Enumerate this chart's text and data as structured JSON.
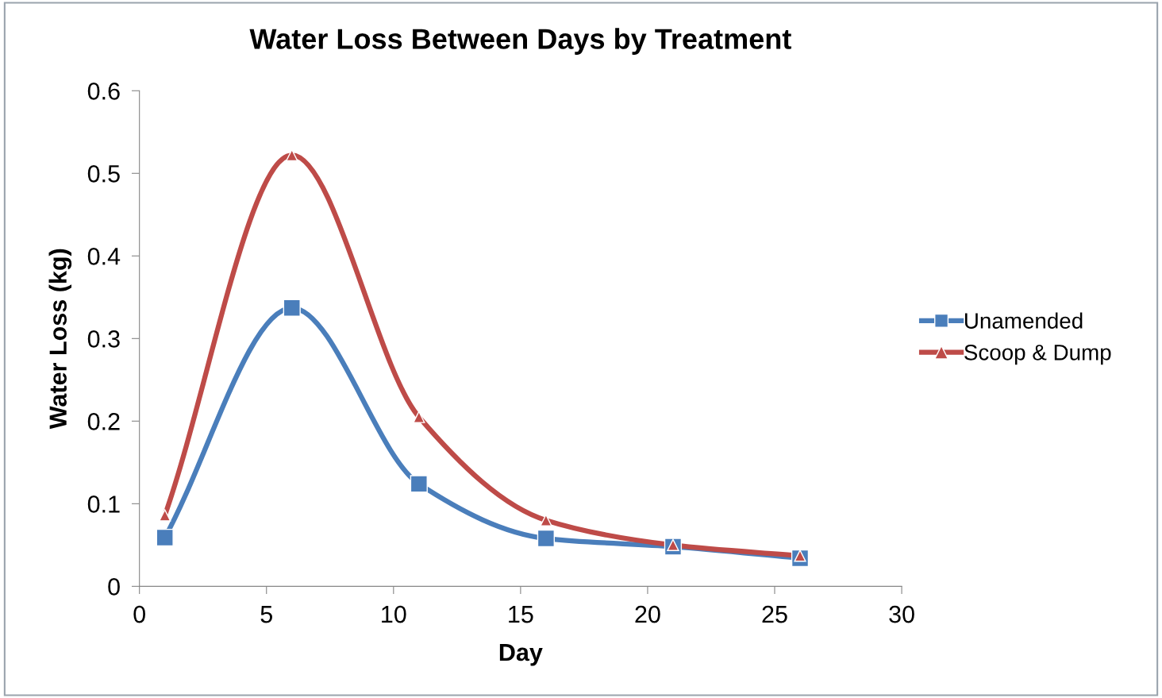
{
  "chart_data": {
    "type": "line",
    "title": "Water Loss Between Days by Treatment",
    "xlabel": "Day",
    "ylabel": "Water Loss (kg)",
    "xlim": [
      0,
      30
    ],
    "xticks": [
      0,
      5,
      10,
      15,
      20,
      25,
      30
    ],
    "ylim": [
      0,
      0.6
    ],
    "yticks": [
      0,
      0.1,
      0.2,
      0.3,
      0.4,
      0.5,
      0.6
    ],
    "x": [
      1,
      6,
      11,
      16,
      21,
      26
    ],
    "grid": false,
    "legend": "right",
    "line_style": "solid",
    "series": [
      {
        "name": "Unamended",
        "color": "#4a7ebb",
        "marker": "square",
        "values": [
          0.059,
          0.337,
          0.124,
          0.058,
          0.048,
          0.034
        ]
      },
      {
        "name": "Scoop & Dump",
        "color": "#be4b48",
        "marker": "triangle",
        "values": [
          0.086,
          0.522,
          0.205,
          0.08,
          0.05,
          0.037
        ]
      }
    ]
  }
}
